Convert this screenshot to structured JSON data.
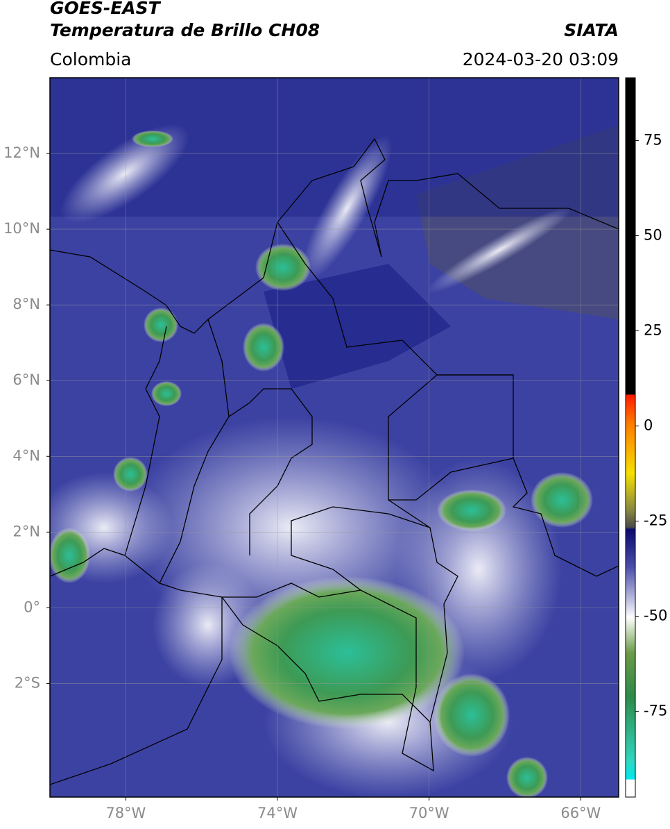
{
  "header": {
    "title": "GOES-EAST",
    "subtitle": "Temperatura de Brillo CH08",
    "source": "SIATA",
    "region": "Colombia",
    "timestamp": "2024-03-20 03:09"
  },
  "map": {
    "lonlim": [
      -80,
      -65
    ],
    "latlim": [
      -5,
      14
    ],
    "lat_ticks": [
      {
        "value": 12,
        "label": "12°N"
      },
      {
        "value": 10,
        "label": "10°N"
      },
      {
        "value": 8,
        "label": "8°N"
      },
      {
        "value": 6,
        "label": "6°N"
      },
      {
        "value": 4,
        "label": "4°N"
      },
      {
        "value": 2,
        "label": "2°N"
      },
      {
        "value": 0,
        "label": "0°"
      },
      {
        "value": -2,
        "label": "2°S"
      }
    ],
    "lon_ticks": [
      {
        "value": -78,
        "label": "78°W"
      },
      {
        "value": -74,
        "label": "74°W"
      },
      {
        "value": -70,
        "label": "70°W"
      },
      {
        "value": -66,
        "label": "66°W"
      }
    ],
    "grid": true
  },
  "colorbar": {
    "lim": [
      -97.5,
      91.5
    ],
    "ticks": [
      75,
      50,
      25,
      0,
      -25,
      -50,
      -75
    ]
  }
}
